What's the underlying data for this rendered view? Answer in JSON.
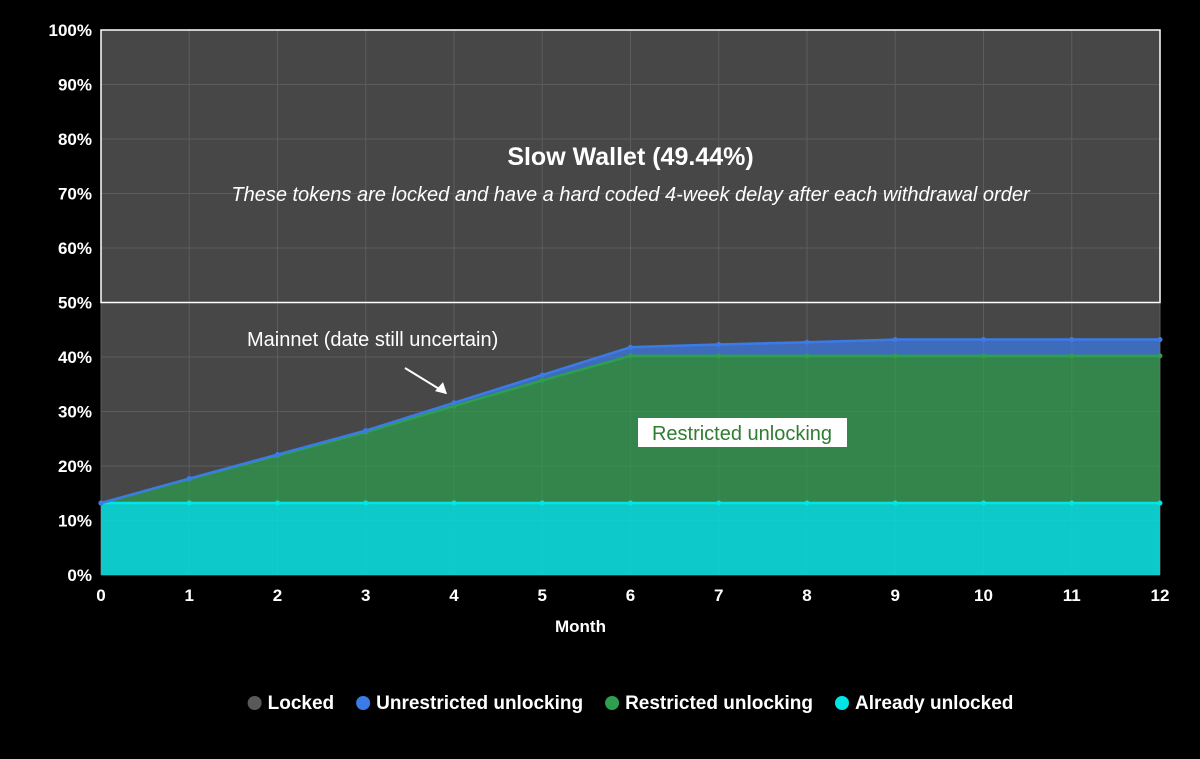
{
  "chart_data": {
    "type": "area",
    "stacked": true,
    "xlabel": "Month",
    "x": [
      0,
      1,
      2,
      3,
      4,
      5,
      6,
      7,
      8,
      9,
      10,
      11,
      12
    ],
    "x_tick_labels": [
      "0",
      "1",
      "2",
      "3",
      "4",
      "5",
      "6",
      "7",
      "8",
      "9",
      "10",
      "11",
      "12"
    ],
    "ylim": [
      0,
      100
    ],
    "y_tick_labels": [
      "0%",
      "10%",
      "20%",
      "30%",
      "40%",
      "50%",
      "60%",
      "70%",
      "80%",
      "90%",
      "100%"
    ],
    "grid": true,
    "legend_position": "bottom",
    "series": [
      {
        "name": "Already unlocked",
        "color": "#00e5e5",
        "values": [
          13.2,
          13.2,
          13.2,
          13.2,
          13.2,
          13.2,
          13.2,
          13.2,
          13.2,
          13.2,
          13.2,
          13.2,
          13.2
        ]
      },
      {
        "name": "Restricted unlocking",
        "color": "#2e9e4f",
        "values": [
          0,
          4.4,
          8.7,
          13.0,
          17.8,
          22.5,
          27.0,
          27.0,
          27.0,
          27.0,
          27.0,
          27.0,
          27.0
        ]
      },
      {
        "name": "Unrestricted unlocking",
        "color": "#3b7be8",
        "values": [
          0,
          0.1,
          0.2,
          0.3,
          0.6,
          1.0,
          1.6,
          2.1,
          2.5,
          3.0,
          3.0,
          3.0,
          3.0
        ]
      },
      {
        "name": "Locked",
        "color": "#595959",
        "values": [
          86.8,
          82.3,
          77.9,
          73.5,
          68.4,
          63.3,
          58.2,
          57.7,
          57.3,
          56.8,
          56.8,
          56.8,
          56.8
        ]
      }
    ],
    "legend_order": [
      "Locked",
      "Unrestricted unlocking",
      "Restricted unlocking",
      "Already unlocked"
    ],
    "annotations": {
      "slow_wallet_title": "Slow Wallet (49.44%)",
      "slow_wallet_subtitle": "These tokens are locked and have a hard coded 4-week delay after each withdrawal order",
      "slow_wallet_range": [
        50,
        100
      ],
      "mainnet_note": "Mainnet (date still uncertain)",
      "mainnet_month": 4,
      "restricted_label": "Restricted unlocking"
    },
    "colors": {
      "background": "#000000",
      "plot_background": "#474747",
      "grid": "#5c5c5c",
      "box_border": "#ffffff",
      "restricted_label_bg": "#ffffff",
      "restricted_label_text": "#2e7d32"
    }
  }
}
